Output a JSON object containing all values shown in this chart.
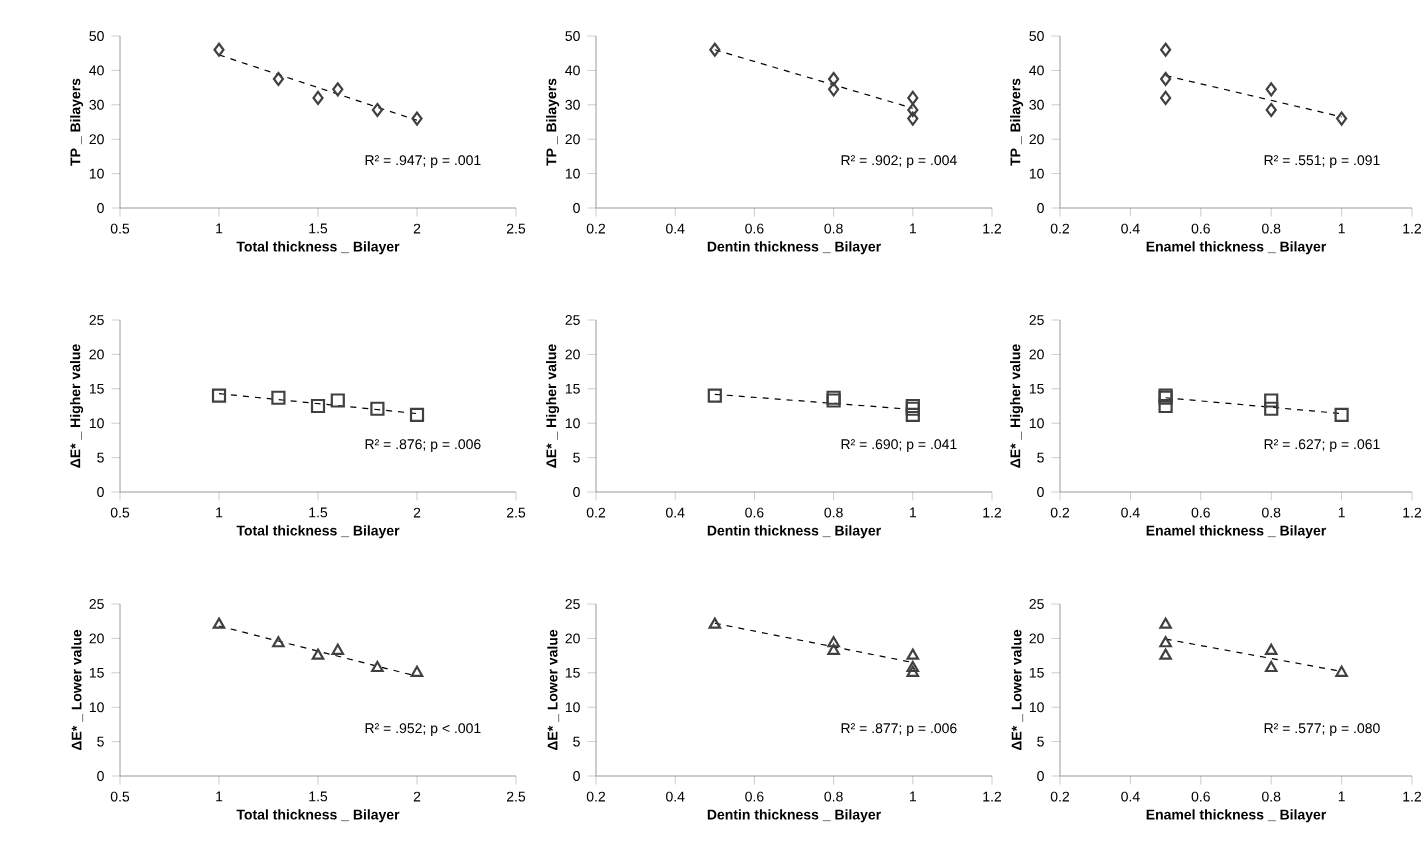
{
  "chart_data": [
    {
      "type": "scatter",
      "xlabel": "Total thickness _ Bilayer",
      "ylabel": "TP _ Bilayers",
      "xlim": [
        0.5,
        2.5
      ],
      "xticks": [
        0.5,
        1,
        1.5,
        2,
        2.5
      ],
      "ylim": [
        0,
        50
      ],
      "yticks": [
        0,
        10,
        20,
        30,
        40,
        50
      ],
      "annotations": [
        "R² = .947; p = .001"
      ],
      "series": [
        {
          "marker": "diamond",
          "color": "#404040",
          "x": [
            1,
            1.3,
            1.5,
            1.6,
            1.8,
            2
          ],
          "values": [
            46,
            37.5,
            32,
            34.5,
            28.5,
            26
          ]
        },
        {
          "type": "line",
          "color": "#000000",
          "line_style": "dashed",
          "x": [
            1,
            2
          ],
          "values": [
            44.5,
            25.5
          ]
        }
      ]
    },
    {
      "type": "scatter",
      "xlabel": "Dentin thickness _ Bilayer",
      "ylabel": "TP _ Bilayers",
      "xlim": [
        0.2,
        1.2
      ],
      "xticks": [
        0.2,
        0.4,
        0.6,
        0.8,
        1,
        1.2
      ],
      "ylim": [
        0,
        50
      ],
      "yticks": [
        0,
        10,
        20,
        30,
        40,
        50
      ],
      "annotations": [
        "R² = .902; p = .004"
      ],
      "series": [
        {
          "marker": "diamond",
          "color": "#404040",
          "x": [
            0.5,
            0.8,
            1,
            0.8,
            1,
            1
          ],
          "values": [
            46,
            37.5,
            32,
            34.5,
            28.5,
            26
          ]
        },
        {
          "type": "line",
          "color": "#000000",
          "line_style": "dashed",
          "x": [
            0.5,
            1
          ],
          "values": [
            46,
            29
          ]
        }
      ]
    },
    {
      "type": "scatter",
      "xlabel": "Enamel thickness _ Bilayer",
      "ylabel": "TP _ Bilayers",
      "xlim": [
        0.2,
        1.2
      ],
      "xticks": [
        0.2,
        0.4,
        0.6,
        0.8,
        1,
        1.2
      ],
      "ylim": [
        0,
        50
      ],
      "yticks": [
        0,
        10,
        20,
        30,
        40,
        50
      ],
      "annotations": [
        "R² = .551; p = .091"
      ],
      "series": [
        {
          "marker": "diamond",
          "color": "#404040",
          "x": [
            0.5,
            0.5,
            0.5,
            0.8,
            0.8,
            1
          ],
          "values": [
            46,
            37.5,
            32,
            34.5,
            28.5,
            26
          ]
        },
        {
          "type": "line",
          "color": "#000000",
          "line_style": "dashed",
          "x": [
            0.5,
            1
          ],
          "values": [
            38.5,
            26.5
          ]
        }
      ]
    },
    {
      "type": "scatter",
      "xlabel": "Total thickness _ Bilayer",
      "ylabel": "ΔE* _ Higher value",
      "xlim": [
        0.5,
        2.5
      ],
      "xticks": [
        0.5,
        1,
        1.5,
        2,
        2.5
      ],
      "ylim": [
        0,
        25
      ],
      "yticks": [
        0,
        5,
        10,
        15,
        20,
        25
      ],
      "annotations": [
        "R² = .876; p = .006"
      ],
      "series": [
        {
          "marker": "square",
          "color": "#404040",
          "x": [
            1,
            1.3,
            1.5,
            1.6,
            1.8,
            2
          ],
          "values": [
            14,
            13.7,
            12.5,
            13.3,
            12.1,
            11.2
          ]
        },
        {
          "type": "line",
          "color": "#000000",
          "line_style": "dashed",
          "x": [
            1,
            2
          ],
          "values": [
            14.3,
            11.4
          ]
        }
      ]
    },
    {
      "type": "scatter",
      "xlabel": "Dentin thickness _ Bilayer",
      "ylabel": "ΔE* _ Higher value",
      "xlim": [
        0.2,
        1.2
      ],
      "xticks": [
        0.2,
        0.4,
        0.6,
        0.8,
        1,
        1.2
      ],
      "ylim": [
        0,
        25
      ],
      "yticks": [
        0,
        5,
        10,
        15,
        20,
        25
      ],
      "annotations": [
        "R² = .690; p = .041"
      ],
      "series": [
        {
          "marker": "square",
          "color": "#404040",
          "x": [
            0.5,
            0.8,
            1,
            0.8,
            1,
            1
          ],
          "values": [
            14,
            13.7,
            12.5,
            13.3,
            12.1,
            11.2
          ]
        },
        {
          "type": "line",
          "color": "#000000",
          "line_style": "dashed",
          "x": [
            0.5,
            1
          ],
          "values": [
            14.2,
            12
          ]
        }
      ]
    },
    {
      "type": "scatter",
      "xlabel": "Enamel thickness _ Bilayer",
      "ylabel": "ΔE* _ Higher value",
      "xlim": [
        0.2,
        1.2
      ],
      "xticks": [
        0.2,
        0.4,
        0.6,
        0.8,
        1,
        1.2
      ],
      "ylim": [
        0,
        25
      ],
      "yticks": [
        0,
        5,
        10,
        15,
        20,
        25
      ],
      "annotations": [
        "R² = .627; p = .061"
      ],
      "series": [
        {
          "marker": "square",
          "color": "#404040",
          "x": [
            0.5,
            0.5,
            0.5,
            0.8,
            0.8,
            1
          ],
          "values": [
            14,
            13.7,
            12.5,
            13.3,
            12.1,
            11.2
          ]
        },
        {
          "type": "line",
          "color": "#000000",
          "line_style": "dashed",
          "x": [
            0.5,
            1
          ],
          "values": [
            13.7,
            11.4
          ]
        }
      ]
    },
    {
      "type": "scatter",
      "xlabel": "Total thickness _ Bilayer",
      "ylabel": "ΔE* _ Lower value",
      "xlim": [
        0.5,
        2.5
      ],
      "xticks": [
        0.5,
        1,
        1.5,
        2,
        2.5
      ],
      "ylim": [
        0,
        25
      ],
      "yticks": [
        0,
        5,
        10,
        15,
        20,
        25
      ],
      "annotations": [
        "R² = .952; p < .001"
      ],
      "series": [
        {
          "marker": "triangle",
          "color": "#404040",
          "x": [
            1,
            1.3,
            1.5,
            1.6,
            1.8,
            2
          ],
          "values": [
            22,
            19.3,
            17.5,
            18.2,
            15.7,
            15
          ]
        },
        {
          "type": "line",
          "color": "#000000",
          "line_style": "dashed",
          "x": [
            1,
            2
          ],
          "values": [
            21.8,
            14.5
          ]
        }
      ]
    },
    {
      "type": "scatter",
      "xlabel": "Dentin thickness _ Bilayer",
      "ylabel": "ΔE* _ Lower value",
      "xlim": [
        0.2,
        1.2
      ],
      "xticks": [
        0.2,
        0.4,
        0.6,
        0.8,
        1,
        1.2
      ],
      "ylim": [
        0,
        25
      ],
      "yticks": [
        0,
        5,
        10,
        15,
        20,
        25
      ],
      "annotations": [
        "R² = .877; p = .006"
      ],
      "series": [
        {
          "marker": "triangle",
          "color": "#404040",
          "x": [
            0.5,
            0.8,
            1,
            0.8,
            1,
            1
          ],
          "values": [
            22,
            19.3,
            17.5,
            18.2,
            15.7,
            15
          ]
        },
        {
          "type": "line",
          "color": "#000000",
          "line_style": "dashed",
          "x": [
            0.5,
            1
          ],
          "values": [
            22.2,
            16.5
          ]
        }
      ]
    },
    {
      "type": "scatter",
      "xlabel": "Enamel thickness _ Bilayer",
      "ylabel": "ΔE* _ Lower value",
      "xlim": [
        0.2,
        1.2
      ],
      "xticks": [
        0.2,
        0.4,
        0.6,
        0.8,
        1,
        1.2
      ],
      "ylim": [
        0,
        25
      ],
      "yticks": [
        0,
        5,
        10,
        15,
        20,
        25
      ],
      "annotations": [
        "R² = .577; p = .080"
      ],
      "series": [
        {
          "marker": "triangle",
          "color": "#404040",
          "x": [
            0.5,
            0.5,
            0.5,
            0.8,
            0.8,
            1
          ],
          "values": [
            22,
            19.3,
            17.5,
            18.2,
            15.7,
            15
          ]
        },
        {
          "type": "line",
          "color": "#000000",
          "line_style": "dashed",
          "x": [
            0.5,
            1
          ],
          "values": [
            19.9,
            15.2
          ]
        }
      ]
    }
  ]
}
